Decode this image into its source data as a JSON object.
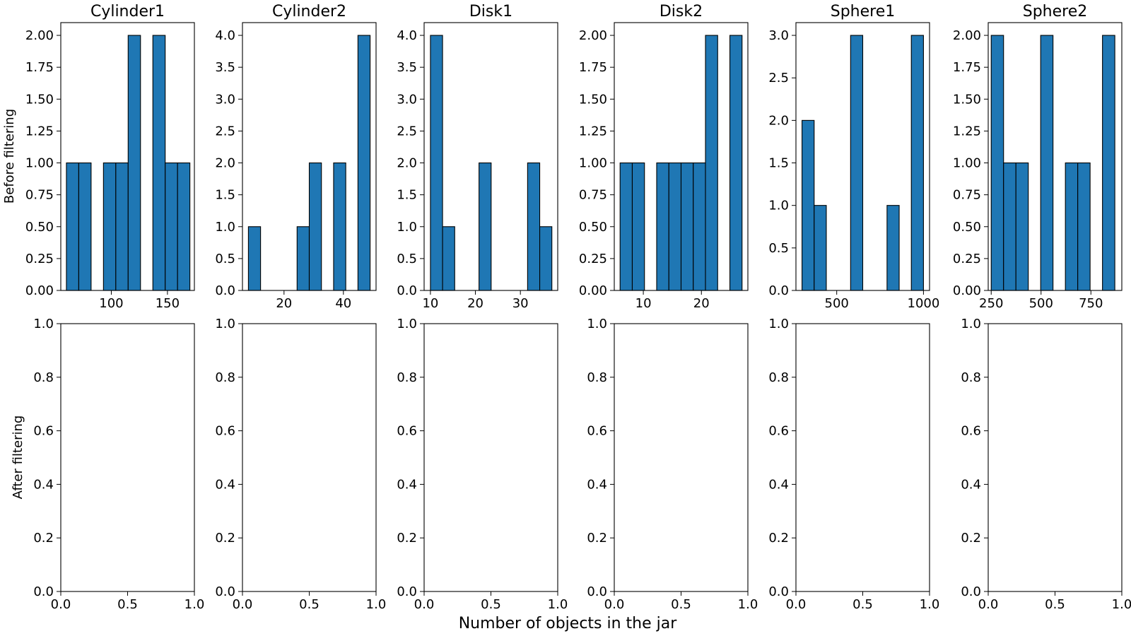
{
  "figure": {
    "xlabel": "Number of objects in the jar",
    "row_labels": [
      "Before filtering",
      "After filtering"
    ]
  },
  "chart_data": [
    {
      "type": "bar",
      "title": "Cylinder1",
      "row": "Before filtering",
      "bins": [
        [
          60,
          71
        ],
        [
          71,
          82
        ],
        [
          93,
          104
        ],
        [
          104,
          115
        ],
        [
          115,
          126
        ],
        [
          137,
          148
        ],
        [
          148,
          159
        ],
        [
          159,
          170
        ]
      ],
      "values": [
        1,
        1,
        1,
        1,
        2,
        2,
        1,
        1
      ],
      "xlim": [
        55,
        174
      ],
      "ylim": [
        0,
        2.1
      ],
      "xticks": [
        100,
        150
      ],
      "xtick_labels": [
        "100",
        "150"
      ],
      "yticks": [
        0,
        0.25,
        0.5,
        0.75,
        1,
        1.25,
        1.5,
        1.75,
        2
      ],
      "ytick_labels": [
        "0.00",
        "0.25",
        "0.50",
        "0.75",
        "1.00",
        "1.25",
        "1.50",
        "1.75",
        "2.00"
      ]
    },
    {
      "type": "bar",
      "title": "Cylinder2",
      "row": "Before filtering",
      "bins": [
        [
          8,
          12.1
        ],
        [
          24.4,
          28.5
        ],
        [
          28.5,
          32.6
        ],
        [
          36.7,
          40.8
        ],
        [
          44.9,
          49
        ]
      ],
      "values": [
        1,
        1,
        2,
        2,
        4
      ],
      "xlim": [
        6,
        51
      ],
      "ylim": [
        0,
        4.2
      ],
      "xticks": [
        20,
        40
      ],
      "xtick_labels": [
        "20",
        "40"
      ],
      "yticks": [
        0,
        0.5,
        1,
        1.5,
        2,
        2.5,
        3,
        3.5,
        4
      ],
      "ytick_labels": [
        "0.0",
        "0.5",
        "1.0",
        "1.5",
        "2.0",
        "2.5",
        "3.0",
        "3.5",
        "4.0"
      ]
    },
    {
      "type": "bar",
      "title": "Disk1",
      "row": "Before filtering",
      "bins": [
        [
          10,
          12.7
        ],
        [
          12.7,
          15.4
        ],
        [
          20.8,
          23.5
        ],
        [
          31.6,
          34.3
        ],
        [
          34.3,
          37
        ]
      ],
      "values": [
        4,
        1,
        2,
        2,
        1
      ],
      "xlim": [
        8.6,
        38.3
      ],
      "ylim": [
        0,
        4.2
      ],
      "xticks": [
        10,
        20,
        30
      ],
      "xtick_labels": [
        "10",
        "20",
        "30"
      ],
      "yticks": [
        0,
        0.5,
        1,
        1.5,
        2,
        2.5,
        3,
        3.5,
        4
      ],
      "ytick_labels": [
        "0.0",
        "0.5",
        "1.0",
        "1.5",
        "2.0",
        "2.5",
        "3.0",
        "3.5",
        "4.0"
      ]
    },
    {
      "type": "bar",
      "title": "Disk2",
      "row": "Before filtering",
      "bins": [
        [
          6,
          8.1
        ],
        [
          8.1,
          10.2
        ],
        [
          12.3,
          14.4
        ],
        [
          14.4,
          16.5
        ],
        [
          16.5,
          18.6
        ],
        [
          18.6,
          20.7
        ],
        [
          20.7,
          22.8
        ],
        [
          24.9,
          27
        ]
      ],
      "values": [
        1,
        1,
        1,
        1,
        1,
        1,
        2,
        2
      ],
      "xlim": [
        5,
        28
      ],
      "ylim": [
        0,
        2.1
      ],
      "xticks": [
        10,
        20
      ],
      "xtick_labels": [
        "10",
        "20"
      ],
      "yticks": [
        0,
        0.25,
        0.5,
        0.75,
        1,
        1.25,
        1.5,
        1.75,
        2
      ],
      "ytick_labels": [
        "0.00",
        "0.25",
        "0.50",
        "0.75",
        "1.00",
        "1.25",
        "1.50",
        "1.75",
        "2.00"
      ]
    },
    {
      "type": "bar",
      "title": "Sphere1",
      "row": "Before filtering",
      "bins": [
        [
          300,
          370
        ],
        [
          370,
          440
        ],
        [
          580,
          650
        ],
        [
          790,
          860
        ],
        [
          930,
          1000
        ]
      ],
      "values": [
        2,
        1,
        3,
        1,
        3
      ],
      "xlim": [
        265,
        1035
      ],
      "ylim": [
        0,
        3.15
      ],
      "xticks": [
        500,
        1000
      ],
      "xtick_labels": [
        "500",
        "1000"
      ],
      "yticks": [
        0,
        0.5,
        1,
        1.5,
        2,
        2.5,
        3
      ],
      "ytick_labels": [
        "0.0",
        "0.5",
        "1.0",
        "1.5",
        "2.0",
        "2.5",
        "3.0"
      ]
    },
    {
      "type": "bar",
      "title": "Sphere2",
      "row": "Before filtering",
      "bins": [
        [
          250,
          312
        ],
        [
          312,
          374
        ],
        [
          374,
          436
        ],
        [
          498,
          560
        ],
        [
          622,
          684
        ],
        [
          684,
          746
        ],
        [
          808,
          870
        ]
      ],
      "values": [
        2,
        1,
        1,
        2,
        1,
        1,
        2
      ],
      "xlim": [
        235,
        905
      ],
      "ylim": [
        0,
        2.1
      ],
      "xticks": [
        250,
        500,
        750
      ],
      "xtick_labels": [
        "250",
        "500",
        "750"
      ],
      "yticks": [
        0,
        0.25,
        0.5,
        0.75,
        1,
        1.25,
        1.5,
        1.75,
        2
      ],
      "ytick_labels": [
        "0.00",
        "0.25",
        "0.50",
        "0.75",
        "1.00",
        "1.25",
        "1.50",
        "1.75",
        "2.00"
      ]
    },
    {
      "type": "bar",
      "title": "",
      "row": "After filtering",
      "bins": [],
      "values": [],
      "xlim": [
        0,
        1
      ],
      "ylim": [
        0,
        1
      ],
      "xticks": [
        0,
        0.5,
        1
      ],
      "xtick_labels": [
        "0.0",
        "0.5",
        "1.0"
      ],
      "yticks": [
        0,
        0.2,
        0.4,
        0.6,
        0.8,
        1
      ],
      "ytick_labels": [
        "0.0",
        "0.2",
        "0.4",
        "0.6",
        "0.8",
        "1.0"
      ]
    },
    {
      "type": "bar",
      "title": "",
      "row": "After filtering",
      "bins": [],
      "values": [],
      "xlim": [
        0,
        1
      ],
      "ylim": [
        0,
        1
      ],
      "xticks": [
        0,
        0.5,
        1
      ],
      "xtick_labels": [
        "0.0",
        "0.5",
        "1.0"
      ],
      "yticks": [
        0,
        0.2,
        0.4,
        0.6,
        0.8,
        1
      ],
      "ytick_labels": [
        "0.0",
        "0.2",
        "0.4",
        "0.6",
        "0.8",
        "1.0"
      ]
    },
    {
      "type": "bar",
      "title": "",
      "row": "After filtering",
      "bins": [],
      "values": [],
      "xlim": [
        0,
        1
      ],
      "ylim": [
        0,
        1
      ],
      "xticks": [
        0,
        0.5,
        1
      ],
      "xtick_labels": [
        "0.0",
        "0.5",
        "1.0"
      ],
      "yticks": [
        0,
        0.2,
        0.4,
        0.6,
        0.8,
        1
      ],
      "ytick_labels": [
        "0.0",
        "0.2",
        "0.4",
        "0.6",
        "0.8",
        "1.0"
      ]
    },
    {
      "type": "bar",
      "title": "",
      "row": "After filtering",
      "bins": [],
      "values": [],
      "xlim": [
        0,
        1
      ],
      "ylim": [
        0,
        1
      ],
      "xticks": [
        0,
        0.5,
        1
      ],
      "xtick_labels": [
        "0.0",
        "0.5",
        "1.0"
      ],
      "yticks": [
        0,
        0.2,
        0.4,
        0.6,
        0.8,
        1
      ],
      "ytick_labels": [
        "0.0",
        "0.2",
        "0.4",
        "0.6",
        "0.8",
        "1.0"
      ]
    },
    {
      "type": "bar",
      "title": "",
      "row": "After filtering",
      "bins": [],
      "values": [],
      "xlim": [
        0,
        1
      ],
      "ylim": [
        0,
        1
      ],
      "xticks": [
        0,
        0.5,
        1
      ],
      "xtick_labels": [
        "0.0",
        "0.5",
        "1.0"
      ],
      "yticks": [
        0,
        0.2,
        0.4,
        0.6,
        0.8,
        1
      ],
      "ytick_labels": [
        "0.0",
        "0.2",
        "0.4",
        "0.6",
        "0.8",
        "1.0"
      ]
    },
    {
      "type": "bar",
      "title": "",
      "row": "After filtering",
      "bins": [],
      "values": [],
      "xlim": [
        0,
        1
      ],
      "ylim": [
        0,
        1
      ],
      "xticks": [
        0,
        0.5,
        1
      ],
      "xtick_labels": [
        "0.0",
        "0.5",
        "1.0"
      ],
      "yticks": [
        0,
        0.2,
        0.4,
        0.6,
        0.8,
        1
      ],
      "ytick_labels": [
        "0.0",
        "0.2",
        "0.4",
        "0.6",
        "0.8",
        "1.0"
      ]
    }
  ]
}
